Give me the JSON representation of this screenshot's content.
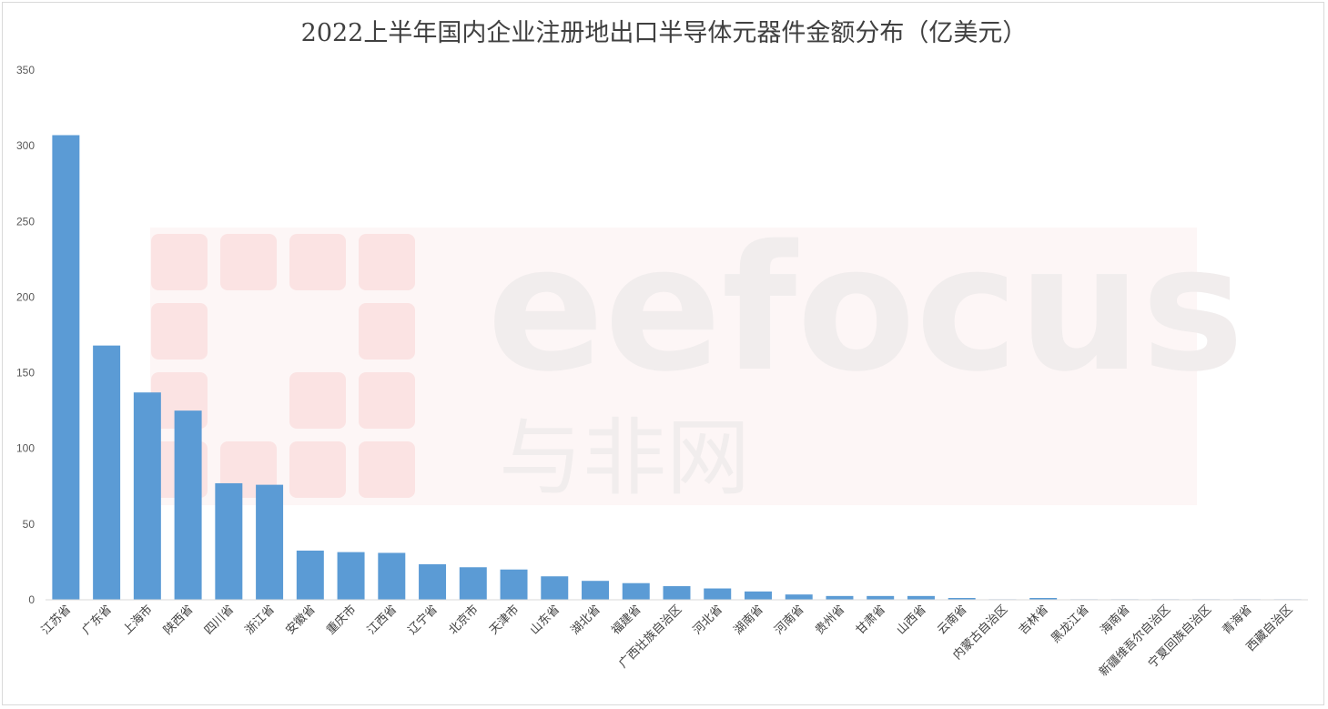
{
  "chart_data": {
    "type": "bar",
    "title": "2022上半年国内企业注册地出口半导体元器件金额分布（亿美元）",
    "categories": [
      "江苏省",
      "广东省",
      "上海市",
      "陕西省",
      "四川省",
      "浙江省",
      "安徽省",
      "重庆市",
      "江西省",
      "辽宁省",
      "北京市",
      "天津市",
      "山东省",
      "湖北省",
      "福建省",
      "广西壮族自治区",
      "河北省",
      "湖南省",
      "河南省",
      "贵州省",
      "甘肃省",
      "山西省",
      "云南省",
      "内蒙古自治区",
      "吉林省",
      "黑龙江省",
      "海南省",
      "新疆维吾尔自治区",
      "宁夏回族自治区",
      "青海省",
      "西藏自治区"
    ],
    "values": [
      307,
      168,
      137,
      125,
      77,
      76,
      32.5,
      31.5,
      31,
      23.5,
      21.5,
      20,
      15.5,
      12.5,
      11,
      9,
      7.5,
      5.5,
      3.5,
      2.5,
      2.5,
      2.5,
      1.2,
      0.3,
      1.2,
      0.2,
      0.2,
      0.1,
      0.1,
      0.1,
      0.1
    ],
    "ylim": [
      0,
      350
    ],
    "yticks": [
      0,
      50,
      100,
      150,
      200,
      250,
      300,
      350
    ],
    "xlabel": "",
    "ylabel": "",
    "bar_color": "#5b9bd5",
    "grid": false,
    "legend": "none"
  },
  "watermark": {
    "text_latin": "eefocus",
    "text_cn": "与非网",
    "color": "#fbe3e3"
  }
}
